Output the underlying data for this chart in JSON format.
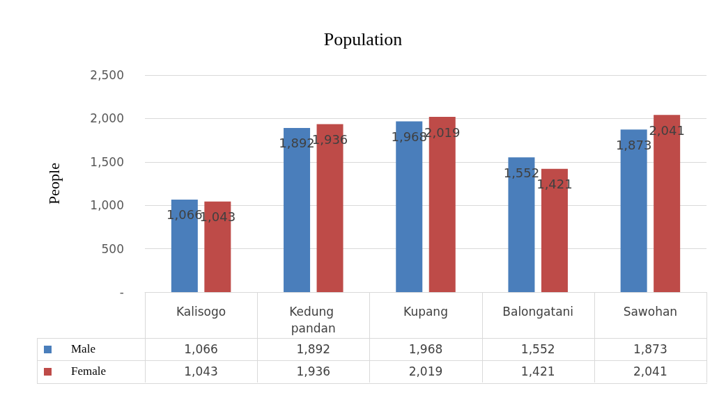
{
  "chart_data": {
    "type": "bar",
    "title": "Population",
    "ylabel": "People",
    "categories": [
      "Kalisogo",
      "Kedung pandan",
      "Kupang",
      "Balongatani",
      "Sawohan"
    ],
    "series": [
      {
        "name": "Male",
        "color": "#4a7ebb",
        "values": [
          1066,
          1892,
          1968,
          1552,
          1873
        ],
        "value_labels": [
          "1,066",
          "1,892",
          "1,968",
          "1,552",
          "1,873"
        ]
      },
      {
        "name": "Female",
        "color": "#be4b48",
        "values": [
          1043,
          1936,
          2019,
          1421,
          2041
        ],
        "value_labels": [
          "1,043",
          "1,936",
          "2,019",
          "1,421",
          "2,041"
        ]
      }
    ],
    "ylim": [
      0,
      2500
    ],
    "yticks": [
      {
        "value": 0,
        "label": "-"
      },
      500,
      {
        "value": 1000,
        "label": "1,000"
      },
      {
        "value": 1500,
        "label": "1,500"
      },
      {
        "value": 2000,
        "label": "2,000"
      },
      {
        "value": 2500,
        "label": "2,500"
      }
    ],
    "grid": "y",
    "legend": "bottom"
  }
}
